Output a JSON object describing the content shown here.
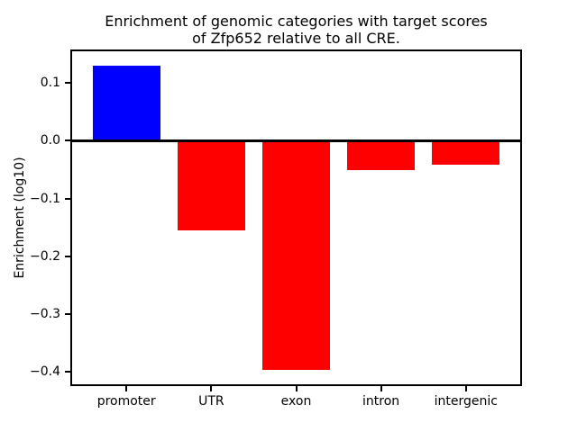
{
  "chart_data": {
    "type": "bar",
    "title": "Enrichment of genomic categories with target scores\nof Zfp652 relative to all CRE.",
    "ylabel": "Enrichment (log10)",
    "xlabel": "",
    "categories": [
      "promoter",
      "UTR",
      "exon",
      "intron",
      "intergenic"
    ],
    "values": [
      0.13,
      -0.155,
      -0.397,
      -0.051,
      -0.042
    ],
    "bar_colors": [
      "#0000ff",
      "#ff0000",
      "#ff0000",
      "#ff0000",
      "#ff0000"
    ],
    "positive_color": "#0000ff",
    "negative_color": "#ff0000",
    "yticks": [
      0.1,
      0.0,
      -0.1,
      -0.2,
      -0.3,
      -0.4
    ],
    "ytick_labels": [
      "0.1",
      "0.0",
      "−0.1",
      "−0.2",
      "−0.3",
      "−0.4"
    ],
    "ylim": [
      -0.422,
      0.155
    ],
    "xlim": [
      -0.64,
      4.64
    ],
    "bar_width": 0.8,
    "grid": false,
    "zero_line": true,
    "legend_position": "none",
    "background_color": "#ffffff",
    "axis_color": "#000000"
  }
}
